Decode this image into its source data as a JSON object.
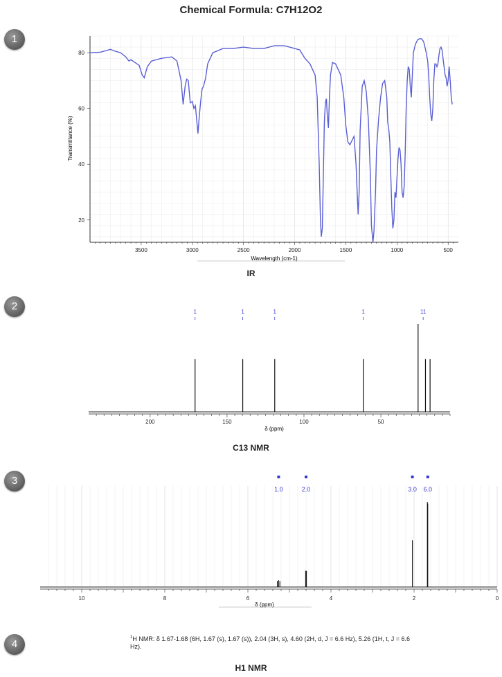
{
  "title": "Chemical Formula: C7H12O2",
  "badges": [
    "1",
    "2",
    "3",
    "4"
  ],
  "chart_data": [
    {
      "type": "line",
      "name": "IR",
      "caption": "IR",
      "xlabel": "Wavelength (cm-1)",
      "ylabel": "Transmittance (%)",
      "xlim": [
        4000,
        400
      ],
      "ylim": [
        12,
        86
      ],
      "xticks": [
        3500,
        3000,
        2500,
        2000,
        1500,
        1000,
        500
      ],
      "yticks": [
        20,
        40,
        60,
        80
      ],
      "grid": true,
      "line_color": "#5a5fd4",
      "points": [
        [
          4000,
          80
        ],
        [
          3900,
          80.2
        ],
        [
          3800,
          81.2
        ],
        [
          3750,
          80.5
        ],
        [
          3700,
          80
        ],
        [
          3650,
          78.5
        ],
        [
          3620,
          77
        ],
        [
          3600,
          77.5
        ],
        [
          3560,
          76.5
        ],
        [
          3520,
          75.5
        ],
        [
          3490,
          72
        ],
        [
          3470,
          71
        ],
        [
          3440,
          75
        ],
        [
          3400,
          77
        ],
        [
          3300,
          78
        ],
        [
          3200,
          78.5
        ],
        [
          3150,
          77
        ],
        [
          3110,
          70
        ],
        [
          3090,
          61.5
        ],
        [
          3070,
          68
        ],
        [
          3055,
          70.5
        ],
        [
          3040,
          70
        ],
        [
          3020,
          62
        ],
        [
          3000,
          62.5
        ],
        [
          2985,
          60
        ],
        [
          2970,
          61
        ],
        [
          2955,
          55
        ],
        [
          2945,
          51
        ],
        [
          2935,
          56
        ],
        [
          2920,
          62
        ],
        [
          2905,
          67
        ],
        [
          2890,
          68
        ],
        [
          2870,
          71
        ],
        [
          2850,
          76
        ],
        [
          2800,
          80
        ],
        [
          2700,
          81.5
        ],
        [
          2600,
          81.5
        ],
        [
          2500,
          82
        ],
        [
          2400,
          81.5
        ],
        [
          2300,
          81.5
        ],
        [
          2200,
          82.5
        ],
        [
          2100,
          82.5
        ],
        [
          2000,
          81.5
        ],
        [
          1950,
          81
        ],
        [
          1900,
          78
        ],
        [
          1850,
          76
        ],
        [
          1800,
          72
        ],
        [
          1780,
          64
        ],
        [
          1760,
          40
        ],
        [
          1748,
          20
        ],
        [
          1740,
          14
        ],
        [
          1730,
          17
        ],
        [
          1720,
          35
        ],
        [
          1710,
          55
        ],
        [
          1700,
          62
        ],
        [
          1690,
          63.5
        ],
        [
          1680,
          57
        ],
        [
          1670,
          53
        ],
        [
          1660,
          64
        ],
        [
          1650,
          72
        ],
        [
          1630,
          76.5
        ],
        [
          1600,
          76
        ],
        [
          1550,
          72
        ],
        [
          1520,
          64
        ],
        [
          1500,
          54
        ],
        [
          1480,
          48
        ],
        [
          1460,
          47
        ],
        [
          1440,
          48.5
        ],
        [
          1420,
          50
        ],
        [
          1400,
          40
        ],
        [
          1380,
          22
        ],
        [
          1370,
          30
        ],
        [
          1360,
          52
        ],
        [
          1340,
          68
        ],
        [
          1320,
          70
        ],
        [
          1300,
          66
        ],
        [
          1280,
          56
        ],
        [
          1260,
          36
        ],
        [
          1250,
          18
        ],
        [
          1235,
          12
        ],
        [
          1225,
          16
        ],
        [
          1210,
          30
        ],
        [
          1200,
          45
        ],
        [
          1180,
          56
        ],
        [
          1160,
          64
        ],
        [
          1140,
          69
        ],
        [
          1120,
          70
        ],
        [
          1100,
          64
        ],
        [
          1090,
          55
        ],
        [
          1080,
          52.5
        ],
        [
          1070,
          48
        ],
        [
          1060,
          35
        ],
        [
          1050,
          24
        ],
        [
          1040,
          17
        ],
        [
          1030,
          20
        ],
        [
          1020,
          30
        ],
        [
          1010,
          28
        ],
        [
          1000,
          35
        ],
        [
          990,
          42
        ],
        [
          980,
          46
        ],
        [
          970,
          45
        ],
        [
          960,
          40
        ],
        [
          950,
          30
        ],
        [
          940,
          28
        ],
        [
          930,
          32
        ],
        [
          920,
          44
        ],
        [
          910,
          60
        ],
        [
          900,
          70
        ],
        [
          890,
          75
        ],
        [
          880,
          74
        ],
        [
          870,
          68
        ],
        [
          860,
          64
        ],
        [
          850,
          72
        ],
        [
          840,
          80
        ],
        [
          820,
          83
        ],
        [
          800,
          84.5
        ],
        [
          780,
          85
        ],
        [
          760,
          85
        ],
        [
          740,
          84
        ],
        [
          720,
          81
        ],
        [
          700,
          77
        ],
        [
          690,
          72
        ],
        [
          680,
          64
        ],
        [
          670,
          58
        ],
        [
          660,
          55.5
        ],
        [
          650,
          60
        ],
        [
          640,
          70
        ],
        [
          630,
          76
        ],
        [
          620,
          76
        ],
        [
          610,
          75
        ],
        [
          600,
          76
        ],
        [
          590,
          79
        ],
        [
          580,
          81.5
        ],
        [
          570,
          82
        ],
        [
          560,
          81
        ],
        [
          550,
          78
        ],
        [
          540,
          75
        ],
        [
          530,
          72
        ],
        [
          520,
          71
        ],
        [
          510,
          68
        ],
        [
          500,
          70
        ],
        [
          490,
          75
        ],
        [
          480,
          70
        ],
        [
          470,
          64
        ],
        [
          460,
          61.5
        ]
      ]
    },
    {
      "type": "bar",
      "name": "C13 NMR",
      "caption": "C13 NMR",
      "xlabel": "δ (ppm)",
      "xlim": [
        240,
        5
      ],
      "xticks": [
        200,
        150,
        100,
        50
      ],
      "peaks": [
        {
          "shift": 170.8,
          "height": 0.6
        },
        {
          "shift": 139.8,
          "height": 0.6
        },
        {
          "shift": 119.0,
          "height": 0.6
        },
        {
          "shift": 61.4,
          "height": 0.6
        },
        {
          "shift": 25.8,
          "height": 1.0
        },
        {
          "shift": 21.0,
          "height": 0.6
        },
        {
          "shift": 18.0,
          "height": 0.6
        }
      ],
      "integrals": [
        {
          "shift": 170.8,
          "label": "1"
        },
        {
          "shift": 139.8,
          "label": "1"
        },
        {
          "shift": 119.0,
          "label": "1"
        },
        {
          "shift": 61.4,
          "label": "1"
        },
        {
          "shift": 22.5,
          "label": "11"
        }
      ],
      "label_color": "#3a3ad0"
    },
    {
      "type": "bar",
      "name": "H1 NMR",
      "caption": "H1 NMR",
      "xlabel": "δ (ppm)",
      "xlim": [
        11,
        0
      ],
      "xticks": [
        10,
        8,
        6,
        4,
        2,
        0
      ],
      "peaks": [
        {
          "shift": 5.29,
          "height": 0.07
        },
        {
          "shift": 5.26,
          "height": 0.08
        },
        {
          "shift": 5.23,
          "height": 0.07
        },
        {
          "shift": 4.61,
          "height": 0.19
        },
        {
          "shift": 4.59,
          "height": 0.19
        },
        {
          "shift": 2.04,
          "height": 0.55
        },
        {
          "shift": 1.68,
          "height": 1.0
        },
        {
          "shift": 1.67,
          "height": 0.98
        }
      ],
      "integrals": [
        {
          "shift": 5.26,
          "label": "1.0"
        },
        {
          "shift": 4.6,
          "label": "2.0"
        },
        {
          "shift": 2.04,
          "label": "3.0"
        },
        {
          "shift": 1.67,
          "label": "6.0"
        }
      ],
      "label_color": "#3a3ad0"
    }
  ],
  "hnmr_text": {
    "sup": "1",
    "body": "H NMR: δ 1.67-1.68 (6H, 1.67 (s), 1.67 (s)), 2.04 (3H, s), 4.60 (2H, d, J = 6.6 Hz), 5.26 (1H, t, J = 6.6 Hz)."
  }
}
